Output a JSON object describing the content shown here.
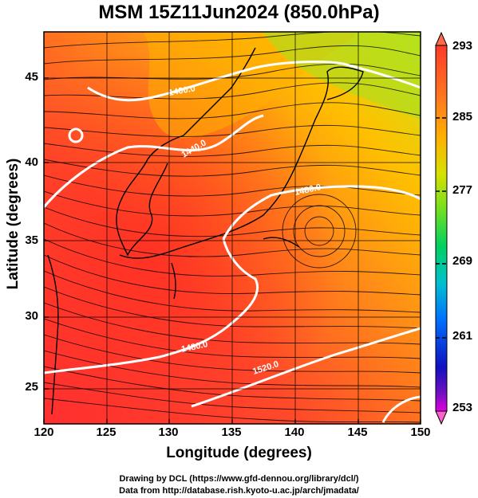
{
  "title": "MSM 15Z11Jun2024 (850.0hPa)",
  "axes": {
    "xlabel": "Longitude (degrees)",
    "ylabel": "Latitude  (degrees)",
    "xticks": [
      "120",
      "125",
      "130",
      "135",
      "140",
      "145",
      "150"
    ],
    "yticks": [
      "25",
      "30",
      "35",
      "40",
      "45"
    ]
  },
  "colorbar": {
    "ticks": [
      "293",
      "285",
      "277",
      "269",
      "261",
      "253"
    ]
  },
  "contour_labels": [
    "1400.0",
    "1440.0",
    "1480.0",
    "1480.0",
    "1520.0"
  ],
  "credits": {
    "line1": "Drawing by DCL (https://www.gfd-dennou.org/library/dcl/)",
    "line2": "Data from http://database.rish.kyoto-u.ac.jp/arch/jmadata/"
  },
  "chart_data": {
    "type": "heatmap",
    "title": "MSM 15Z11Jun2024 (850.0hPa)",
    "xlabel": "Longitude (degrees)",
    "ylabel": "Latitude  (degrees)",
    "xlim": [
      120,
      150
    ],
    "ylim": [
      22.5,
      47.5
    ],
    "colorbar_range": [
      253,
      293
    ],
    "colorbar_ticks": [
      293,
      285,
      277,
      269,
      261,
      253
    ],
    "overlays": [
      "streamlines",
      "white geopotential height contours",
      "coastlines",
      "5-degree grid"
    ],
    "contour_levels": [
      1400.0,
      1440.0,
      1480.0,
      1520.0
    ]
  }
}
